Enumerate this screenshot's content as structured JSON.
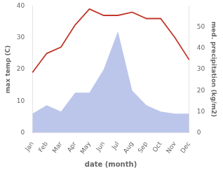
{
  "chart_data": {
    "type": "line",
    "categories": [
      "Jan",
      "Feb",
      "Mar",
      "Apr",
      "May",
      "Jun",
      "Jul",
      "Aug",
      "Sep",
      "Oct",
      "Nov",
      "Dec"
    ],
    "xlabel": "date (month)",
    "ylabel": "max temp (C)",
    "y2label": "med. precipitation (kg/m2)",
    "series": [
      {
        "type": "area",
        "color": "#b0bce8",
        "axis": "y2",
        "values": [
          9,
          13,
          10,
          19,
          19,
          30,
          48,
          20,
          13,
          10,
          9,
          9
        ]
      },
      {
        "type": "line",
        "color": "#c0392b",
        "values": [
          19,
          25,
          27,
          34,
          39,
          37,
          37,
          38,
          36,
          36,
          30,
          23
        ]
      }
    ],
    "ylim": [
      0,
      40
    ],
    "yticks": [
      0,
      10,
      20,
      30,
      40
    ],
    "y2lim": [
      0,
      60
    ],
    "y2ticks": [
      0,
      10,
      20,
      30,
      40,
      50
    ],
    "grid": false
  }
}
